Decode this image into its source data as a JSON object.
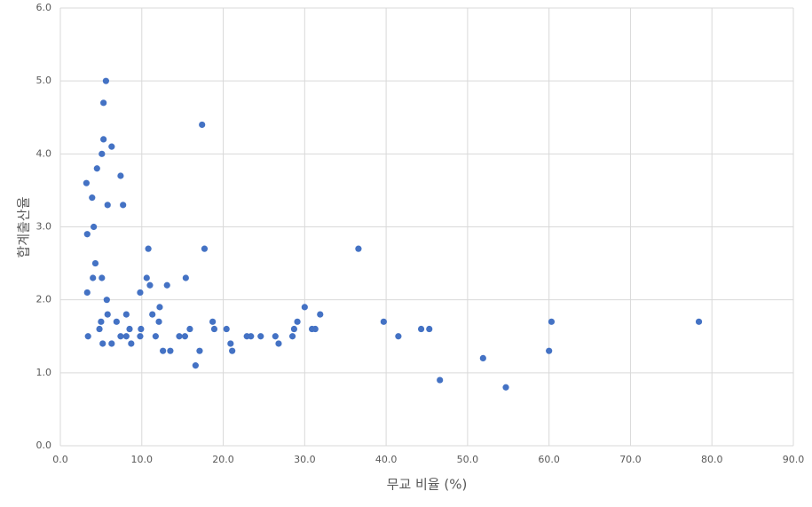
{
  "chart_data": {
    "type": "scatter",
    "x_label": "무교 비율 (%)",
    "y_label": "합계출산율",
    "color": "#4472c4",
    "grid": true,
    "xlim": [
      0,
      90
    ],
    "ylim": [
      0,
      6
    ],
    "xticks": [
      {
        "value": 0,
        "label": "0.0"
      },
      {
        "value": 10,
        "label": "10.0"
      },
      {
        "value": 20,
        "label": "20.0"
      },
      {
        "value": 30,
        "label": "30.0"
      },
      {
        "value": 40,
        "label": "40.0"
      },
      {
        "value": 50,
        "label": "50.0"
      },
      {
        "value": 60,
        "label": "60.0"
      },
      {
        "value": 70,
        "label": "70.0"
      },
      {
        "value": 80,
        "label": "80.0"
      },
      {
        "value": 90,
        "label": "90.0"
      }
    ],
    "yticks": [
      {
        "value": 0,
        "label": "0.0"
      },
      {
        "value": 1,
        "label": "1.0"
      },
      {
        "value": 2,
        "label": "2.0"
      },
      {
        "value": 3,
        "label": "3.0"
      },
      {
        "value": 4,
        "label": "4.0"
      },
      {
        "value": 5,
        "label": "5.0"
      },
      {
        "value": 6,
        "label": "6.0"
      }
    ],
    "x": [
      5.6,
      5.3,
      5.3,
      6.3,
      5.1,
      17.4,
      3.2,
      4.5,
      7.4,
      3.9,
      5.8,
      7.7,
      4.1,
      3.3,
      17.7,
      10.8,
      36.6,
      4.3,
      4.0,
      5.1,
      10.6,
      15.4,
      11.0,
      13.1,
      3.3,
      9.8,
      5.7,
      12.2,
      30.0,
      5.8,
      8.1,
      11.3,
      31.9,
      5.0,
      6.9,
      12.1,
      18.7,
      29.1,
      39.7,
      60.3,
      78.4,
      4.8,
      8.5,
      9.9,
      15.9,
      18.9,
      20.4,
      28.7,
      30.9,
      31.3,
      44.3,
      45.3,
      3.4,
      7.4,
      8.1,
      9.8,
      11.7,
      14.6,
      15.3,
      22.9,
      23.4,
      24.6,
      26.4,
      28.5,
      41.5,
      5.2,
      6.3,
      8.7,
      20.9,
      26.8,
      12.6,
      13.5,
      17.1,
      21.1,
      60.0,
      51.9,
      16.6,
      46.6,
      54.7
    ],
    "values": [
      5.0,
      4.7,
      4.2,
      4.1,
      4.0,
      4.4,
      3.6,
      3.8,
      3.7,
      3.4,
      3.3,
      3.3,
      3.0,
      2.9,
      2.7,
      2.7,
      2.7,
      2.5,
      2.3,
      2.3,
      2.3,
      2.3,
      2.2,
      2.2,
      2.1,
      2.1,
      2.0,
      1.9,
      1.9,
      1.8,
      1.8,
      1.8,
      1.8,
      1.7,
      1.7,
      1.7,
      1.7,
      1.7,
      1.7,
      1.7,
      1.7,
      1.6,
      1.6,
      1.6,
      1.6,
      1.6,
      1.6,
      1.6,
      1.6,
      1.6,
      1.6,
      1.6,
      1.5,
      1.5,
      1.5,
      1.5,
      1.5,
      1.5,
      1.5,
      1.5,
      1.5,
      1.5,
      1.5,
      1.5,
      1.5,
      1.4,
      1.4,
      1.4,
      1.4,
      1.4,
      1.3,
      1.3,
      1.3,
      1.3,
      1.3,
      1.2,
      1.1,
      0.9,
      0.8
    ]
  }
}
